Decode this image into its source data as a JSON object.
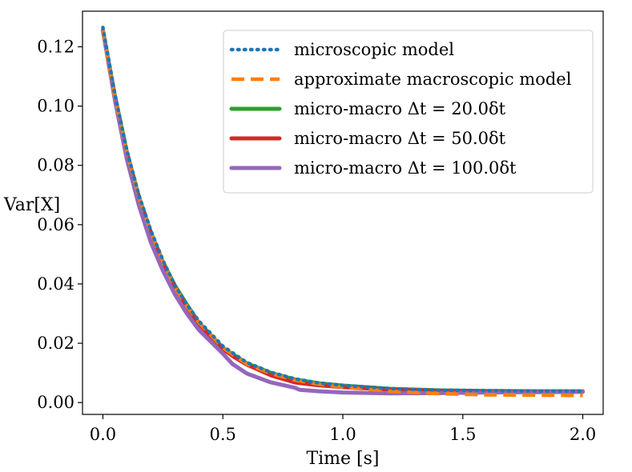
{
  "chart_data": {
    "type": "line",
    "title": "",
    "xlabel": "Time [s]",
    "ylabel": "Var[X]",
    "xlim": [
      -0.085,
      2.085
    ],
    "ylim": [
      -0.004,
      0.132
    ],
    "xticks": [
      0.0,
      0.5,
      1.0,
      1.5,
      2.0
    ],
    "xtick_labels": [
      "0.0",
      "0.5",
      "1.0",
      "1.5",
      "2.0"
    ],
    "yticks": [
      0.0,
      0.02,
      0.04,
      0.06,
      0.08,
      0.1,
      0.12
    ],
    "ytick_labels": [
      "0.00",
      "0.02",
      "0.04",
      "0.06",
      "0.08",
      "0.10",
      "0.12"
    ],
    "grid": false,
    "legend_position": "top-right",
    "series": [
      {
        "name": "microscopic model",
        "color": "#1f77b4",
        "style": "dotted",
        "x": [
          0.0,
          0.05,
          0.1,
          0.15,
          0.2,
          0.25,
          0.3,
          0.35,
          0.4,
          0.5,
          0.6,
          0.7,
          0.8,
          0.9,
          1.0,
          1.2,
          1.4,
          1.6,
          1.8,
          2.0
        ],
        "y": [
          0.1265,
          0.104,
          0.085,
          0.07,
          0.058,
          0.048,
          0.0395,
          0.033,
          0.0275,
          0.019,
          0.0135,
          0.0102,
          0.008,
          0.0066,
          0.0058,
          0.0047,
          0.0042,
          0.004,
          0.0039,
          0.0039
        ]
      },
      {
        "name": "approximate macroscopic model",
        "color": "#ff7f0e",
        "style": "dashed",
        "x": [
          0.0,
          0.05,
          0.1,
          0.15,
          0.2,
          0.25,
          0.3,
          0.35,
          0.4,
          0.5,
          0.6,
          0.7,
          0.8,
          0.9,
          1.0,
          1.2,
          1.4,
          1.6,
          1.8,
          2.0
        ],
        "y": [
          0.1255,
          0.103,
          0.0845,
          0.0695,
          0.0575,
          0.0475,
          0.039,
          0.0325,
          0.027,
          0.0185,
          0.013,
          0.0098,
          0.0076,
          0.0062,
          0.0052,
          0.0038,
          0.003,
          0.0026,
          0.0025,
          0.0024
        ]
      },
      {
        "name": "micro-macro Δt = 20.0δt",
        "color": "#2ca02c",
        "style": "solid",
        "x": [
          0.0,
          0.05,
          0.1,
          0.15,
          0.2,
          0.25,
          0.3,
          0.35,
          0.4,
          0.5,
          0.6,
          0.7,
          0.8,
          0.9,
          1.0,
          1.2,
          1.4,
          1.6,
          1.8,
          2.0
        ],
        "y": [
          0.1255,
          0.1035,
          0.0845,
          0.0695,
          0.0575,
          0.0475,
          0.0395,
          0.033,
          0.027,
          0.0185,
          0.0132,
          0.01,
          0.0078,
          0.0065,
          0.0057,
          0.0046,
          0.0041,
          0.0039,
          0.0038,
          0.0038
        ]
      },
      {
        "name": "micro-macro Δt = 50.0δt",
        "color": "#d62728",
        "style": "solid",
        "x": [
          0.0,
          0.05,
          0.1,
          0.15,
          0.2,
          0.25,
          0.3,
          0.35,
          0.4,
          0.5,
          0.55,
          0.6,
          0.7,
          0.8,
          0.9,
          1.0,
          1.2,
          1.4,
          1.6,
          1.8,
          2.0
        ],
        "y": [
          0.1255,
          0.103,
          0.084,
          0.069,
          0.057,
          0.047,
          0.039,
          0.0322,
          0.0265,
          0.018,
          0.0152,
          0.0128,
          0.0092,
          0.0068,
          0.0058,
          0.0052,
          0.0044,
          0.004,
          0.0038,
          0.0037,
          0.0037
        ]
      },
      {
        "name": "micro-macro Δt = 100.0δt",
        "color": "#9467bd",
        "style": "solid",
        "x": [
          0.0,
          0.05,
          0.1,
          0.15,
          0.2,
          0.25,
          0.3,
          0.35,
          0.4,
          0.5,
          0.54,
          0.6,
          0.7,
          0.8,
          0.82,
          0.9,
          1.0,
          1.2,
          1.4,
          1.6,
          1.8,
          2.0
        ],
        "y": [
          0.1255,
          0.102,
          0.082,
          0.0665,
          0.054,
          0.0445,
          0.0365,
          0.03,
          0.0245,
          0.0165,
          0.013,
          0.0098,
          0.0068,
          0.005,
          0.0043,
          0.0038,
          0.0034,
          0.0031,
          0.0032,
          0.0034,
          0.0035,
          0.0036
        ]
      }
    ]
  }
}
